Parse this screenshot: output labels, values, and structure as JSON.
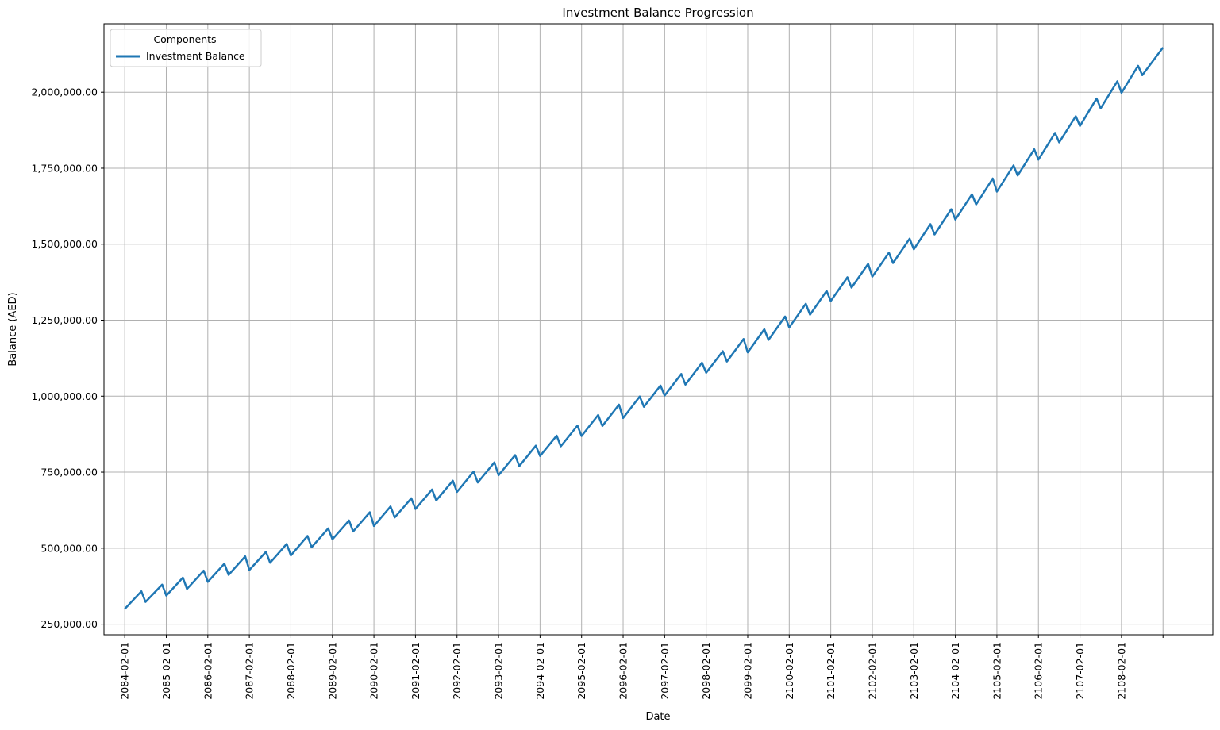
{
  "chart_data": {
    "type": "line",
    "title": "Investment Balance Progression",
    "xlabel": "Date",
    "ylabel": "Balance (AED)",
    "legend": {
      "title": "Components",
      "position": "top-left",
      "entries": [
        "Investment Balance"
      ]
    },
    "grid": true,
    "x_tick_labels": [
      "2084-02-01",
      "2085-02-01",
      "2086-02-01",
      "2087-02-01",
      "2088-02-01",
      "2089-02-01",
      "2090-02-01",
      "2091-02-01",
      "2092-02-01",
      "2093-02-01",
      "2094-02-01",
      "2095-02-01",
      "2096-02-01",
      "2097-02-01",
      "2098-02-01",
      "2099-02-01",
      "2100-02-01",
      "2101-02-01",
      "2102-02-01",
      "2103-02-01",
      "2104-02-01",
      "2105-02-01",
      "2106-02-01",
      "2107-02-01",
      "2108-02-01",
      ""
    ],
    "y_ticks": [
      250000,
      500000,
      750000,
      1000000,
      1250000,
      1500000,
      1750000,
      2000000
    ],
    "y_tick_labels": [
      "250,000.00",
      "500,000.00",
      "750,000.00",
      "1,000,000.00",
      "1,250,000.00",
      "1,500,000.00",
      "1,750,000.00",
      "2,000,000.00"
    ],
    "ylim": [
      215000,
      2225000
    ],
    "xlim_years": [
      2083.5,
      2110.2
    ],
    "series": [
      {
        "name": "Investment Balance",
        "color": "#1f77b4",
        "x": [
          2084.0,
          2084.4,
          2084.5,
          2084.9,
          2085.0,
          2085.4,
          2085.5,
          2085.9,
          2086.0,
          2086.4,
          2086.5,
          2086.9,
          2087.0,
          2087.4,
          2087.5,
          2087.9,
          2088.0,
          2088.4,
          2088.5,
          2088.9,
          2089.0,
          2089.4,
          2089.5,
          2089.9,
          2090.0,
          2090.4,
          2090.5,
          2090.9,
          2091.0,
          2091.4,
          2091.5,
          2091.9,
          2092.0,
          2092.4,
          2092.5,
          2092.9,
          2093.0,
          2093.4,
          2093.5,
          2093.9,
          2094.0,
          2094.4,
          2094.5,
          2094.9,
          2095.0,
          2095.4,
          2095.5,
          2095.9,
          2096.0,
          2096.4,
          2096.5,
          2096.9,
          2097.0,
          2097.4,
          2097.5,
          2097.9,
          2098.0,
          2098.4,
          2098.5,
          2098.9,
          2099.0,
          2099.4,
          2099.5,
          2099.9,
          2100.0,
          2100.4,
          2100.5,
          2100.9,
          2101.0,
          2101.4,
          2101.5,
          2101.9,
          2102.0,
          2102.4,
          2102.5,
          2102.9,
          2103.0,
          2103.4,
          2103.5,
          2103.9,
          2104.0,
          2104.4,
          2104.5,
          2104.9,
          2105.0,
          2105.4,
          2105.5,
          2105.9,
          2106.0,
          2106.4,
          2106.5,
          2106.9,
          2107.0,
          2107.4,
          2107.5,
          2107.9,
          2108.0,
          2108.4,
          2108.5,
          2109.0
        ],
        "values": [
          300000,
          358000,
          323000,
          380000,
          344000,
          403000,
          366000,
          426000,
          389000,
          449000,
          412000,
          473000,
          428000,
          488000,
          452000,
          514000,
          476000,
          540000,
          503000,
          565000,
          529000,
          591000,
          555000,
          618000,
          573000,
          637000,
          601000,
          664000,
          629000,
          693000,
          657000,
          722000,
          685000,
          752000,
          716000,
          782000,
          740000,
          806000,
          770000,
          837000,
          803000,
          870000,
          835000,
          903000,
          869000,
          938000,
          902000,
          972000,
          928000,
          999000,
          965000,
          1035000,
          1002000,
          1073000,
          1038000,
          1110000,
          1077000,
          1148000,
          1114000,
          1188000,
          1144000,
          1220000,
          1185000,
          1262000,
          1226000,
          1304000,
          1268000,
          1346000,
          1313000,
          1391000,
          1357000,
          1435000,
          1393000,
          1472000,
          1438000,
          1518000,
          1483000,
          1566000,
          1532000,
          1615000,
          1581000,
          1664000,
          1631000,
          1716000,
          1673000,
          1759000,
          1726000,
          1812000,
          1778000,
          1866000,
          1835000,
          1921000,
          1889000,
          1979000,
          1947000,
          2036000,
          1998000,
          2087000,
          2056000,
          2147000
        ]
      }
    ]
  }
}
